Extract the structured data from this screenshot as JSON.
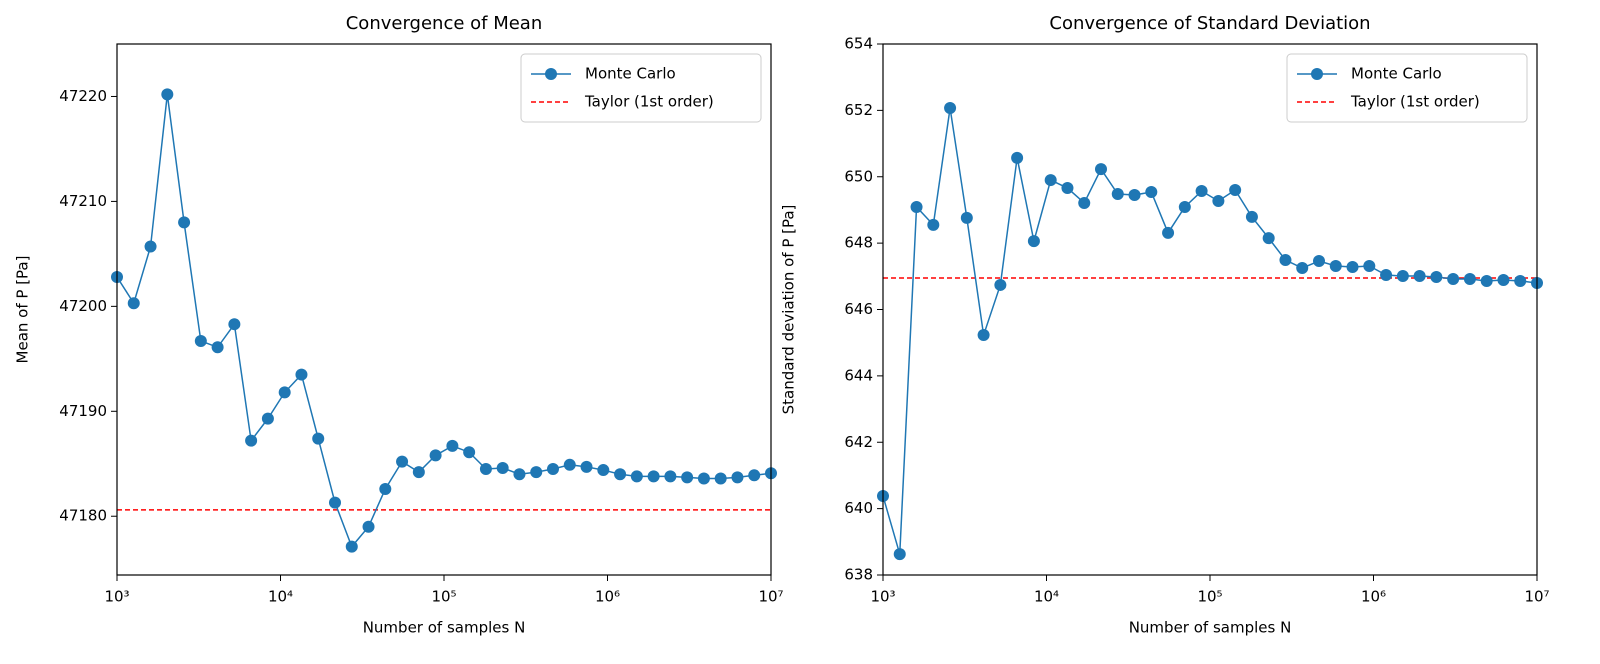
{
  "chart_data": [
    {
      "type": "line",
      "title": "Convergence of Mean",
      "xlabel": "Number of samples N",
      "ylabel": "Mean of P [Pa]",
      "xscale": "log",
      "legend": "upper right",
      "x": [
        1000,
        1266,
        1604,
        2031,
        2572,
        3256,
        4124,
        5222,
        6612,
        8374,
        10608,
        13434,
        17012,
        21544,
        27282,
        34548,
        43750,
        55402,
        70157,
        88843,
        112530,
        142510,
        180470,
        228530,
        289400,
        366480,
        464160,
        587770,
        744330,
        942570,
        1193700,
        1511700,
        1914400,
        2424200,
        3069900,
        3887600,
        4923200,
        6234500,
        7895300,
        10000000
      ],
      "series": [
        {
          "name": "Monte Carlo",
          "color": "#1f77b4",
          "values": [
            47202.8,
            47200.3,
            47205.7,
            47220.2,
            47208.0,
            47196.7,
            47196.1,
            47198.3,
            47187.2,
            47189.3,
            47191.8,
            47193.5,
            47187.4,
            47181.3,
            47177.1,
            47179.0,
            47182.6,
            47185.2,
            47184.2,
            47185.8,
            47186.7,
            47186.1,
            47184.5,
            47184.6,
            47184.0,
            47184.2,
            47184.5,
            47184.9,
            47184.7,
            47184.4,
            47184.0,
            47183.8,
            47183.8,
            47183.8,
            47183.7,
            47183.6,
            47183.6,
            47183.7,
            47183.9,
            47184.1
          ]
        }
      ],
      "hlines": [
        {
          "name": "Taylor (1st order)",
          "color": "#ff0000",
          "value": 47180.6
        }
      ],
      "xlim": [
        1000,
        10000000
      ],
      "xticks": [
        {
          "value": 1000,
          "label": "10³"
        },
        {
          "value": 10000,
          "label": "10⁴"
        },
        {
          "value": 100000,
          "label": "10⁵"
        },
        {
          "value": 1000000,
          "label": "10⁶"
        },
        {
          "value": 10000000,
          "label": "10⁷"
        }
      ],
      "ylim": [
        47174.4,
        47225
      ],
      "yticks": [
        47180,
        47190,
        47200,
        47210,
        47220
      ]
    },
    {
      "type": "line",
      "title": "Convergence of Standard Deviation",
      "xlabel": "Number of samples N",
      "ylabel": "Standard deviation of P [Pa]",
      "xscale": "log",
      "legend": "upper right",
      "x": [
        1000,
        1266,
        1604,
        2031,
        2572,
        3256,
        4124,
        5222,
        6612,
        8374,
        10608,
        13434,
        17012,
        21544,
        27282,
        34548,
        43750,
        55402,
        70157,
        88843,
        112530,
        142510,
        180470,
        228530,
        289400,
        366480,
        464160,
        587770,
        744330,
        942570,
        1193700,
        1511700,
        1914400,
        2424200,
        3069900,
        3887600,
        4923200,
        6234500,
        7895300,
        10000000
      ],
      "series": [
        {
          "name": "Monte Carlo",
          "color": "#1f77b4",
          "values": [
            640.38,
            638.63,
            649.09,
            648.55,
            652.07,
            648.76,
            645.23,
            646.74,
            650.57,
            648.06,
            649.9,
            649.66,
            649.21,
            650.23,
            649.48,
            649.45,
            649.54,
            648.31,
            649.09,
            649.57,
            649.27,
            649.6,
            648.79,
            648.15,
            647.49,
            647.25,
            647.46,
            647.31,
            647.28,
            647.31,
            647.04,
            647.01,
            647.01,
            646.98,
            646.92,
            646.92,
            646.86,
            646.89,
            646.86,
            646.8
          ]
        }
      ],
      "hlines": [
        {
          "name": "Taylor (1st order)",
          "color": "#ff0000",
          "value": 646.95
        }
      ],
      "xlim": [
        1000,
        10000000
      ],
      "xticks": [
        {
          "value": 1000,
          "label": "10³"
        },
        {
          "value": 10000,
          "label": "10⁴"
        },
        {
          "value": 100000,
          "label": "10⁵"
        },
        {
          "value": 1000000,
          "label": "10⁶"
        },
        {
          "value": 10000000,
          "label": "10⁷"
        }
      ],
      "ylim": [
        638,
        654
      ],
      "yticks": [
        638,
        640,
        642,
        644,
        646,
        648,
        650,
        652,
        654
      ]
    }
  ]
}
